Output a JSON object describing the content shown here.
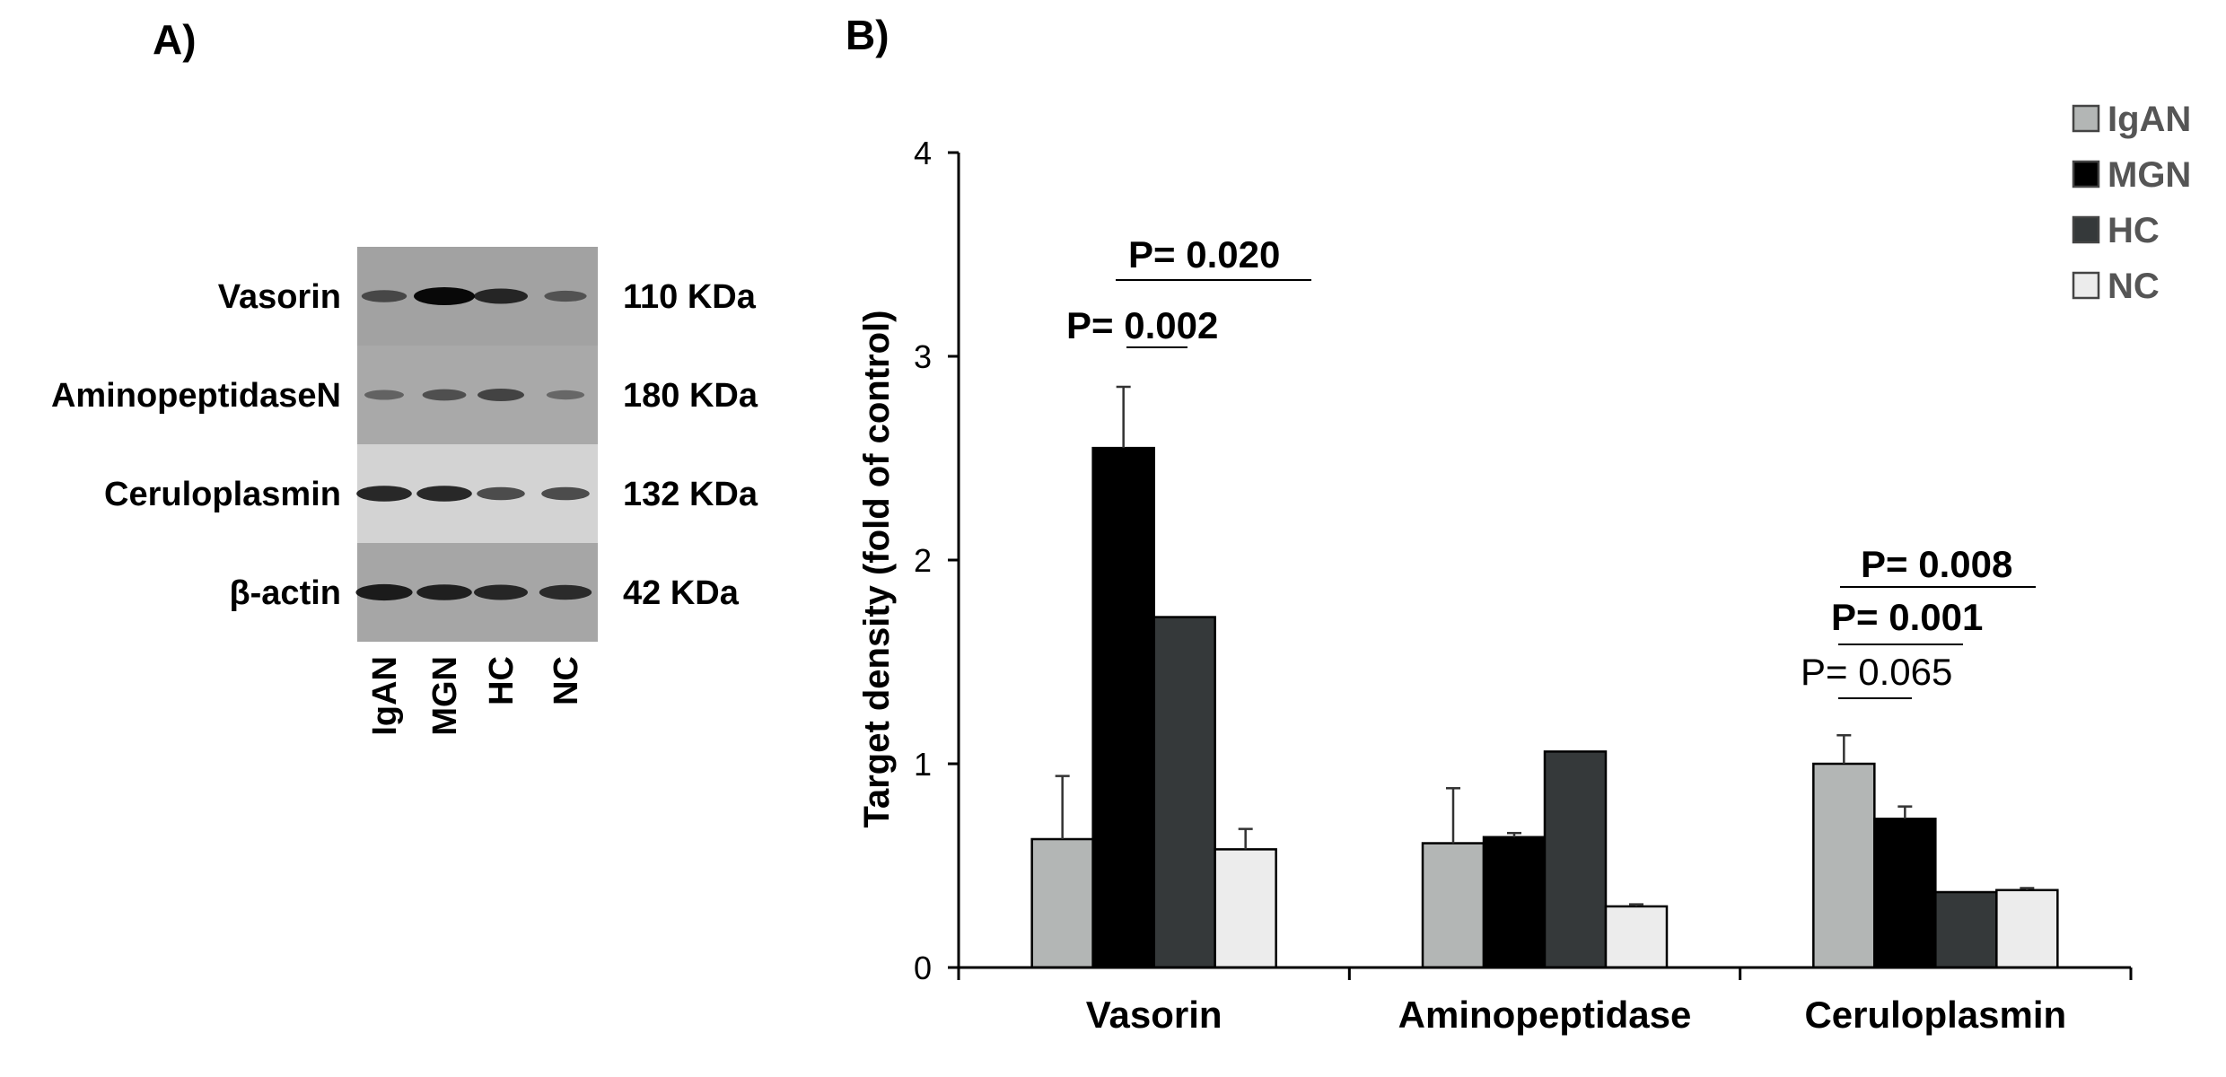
{
  "panel_a": {
    "label": "A)",
    "rows": [
      {
        "name": "Vasorin",
        "kda": "110 KDa",
        "bg": "#a2a2a2",
        "bands": [
          0.45,
          1.0,
          0.75,
          0.35
        ]
      },
      {
        "name": "AminopeptidaseN",
        "kda": "180 KDa",
        "bg": "#a9a9a9",
        "bands": [
          0.25,
          0.4,
          0.5,
          0.2
        ]
      },
      {
        "name": "Ceruloplasmin",
        "kda": "132 KDa",
        "bg": "#d3d3d3",
        "bands": [
          0.8,
          0.8,
          0.55,
          0.55
        ]
      },
      {
        "name": "β-actin",
        "kda": "42 KDa",
        "bg": "#a6a6a6",
        "bands": [
          0.85,
          0.8,
          0.75,
          0.7
        ]
      }
    ],
    "lanes": [
      "IgAN",
      "MGN",
      "HC",
      "NC"
    ]
  },
  "panel_b": {
    "label": "B)"
  },
  "chart_data": {
    "type": "bar",
    "title": "",
    "ylabel": "Target density (fold of control)",
    "xlabel": "",
    "ylim": [
      0,
      4
    ],
    "yticks": [
      0,
      1,
      2,
      3,
      4
    ],
    "categories": [
      "Vasorin",
      "Aminopeptidase",
      "Ceruloplasmin"
    ],
    "legend_position": "top-right",
    "series": [
      {
        "name": "IgAN",
        "color": "#b3b6b5",
        "values": [
          0.63,
          0.61,
          1.0
        ],
        "errors": [
          0.31,
          0.27,
          0.14
        ]
      },
      {
        "name": "MGN",
        "color": "#000000",
        "values": [
          2.55,
          0.64,
          0.73
        ],
        "errors": [
          0.3,
          0.02,
          0.06
        ]
      },
      {
        "name": "HC",
        "color": "#35393a",
        "values": [
          1.72,
          1.06,
          0.37
        ],
        "errors": [
          0,
          0,
          0
        ]
      },
      {
        "name": "NC",
        "color": "#ececec",
        "values": [
          0.58,
          0.3,
          0.38
        ],
        "errors": [
          0.1,
          0.01,
          0.01
        ]
      }
    ],
    "annotations": [
      {
        "text": "P= 0.020",
        "bold": true
      },
      {
        "text": "P= 0.002",
        "bold": true
      },
      {
        "text": "P= 0.008",
        "bold": true
      },
      {
        "text": "P= 0.001",
        "bold": true
      },
      {
        "text": "P= 0.065",
        "bold": false
      }
    ]
  }
}
